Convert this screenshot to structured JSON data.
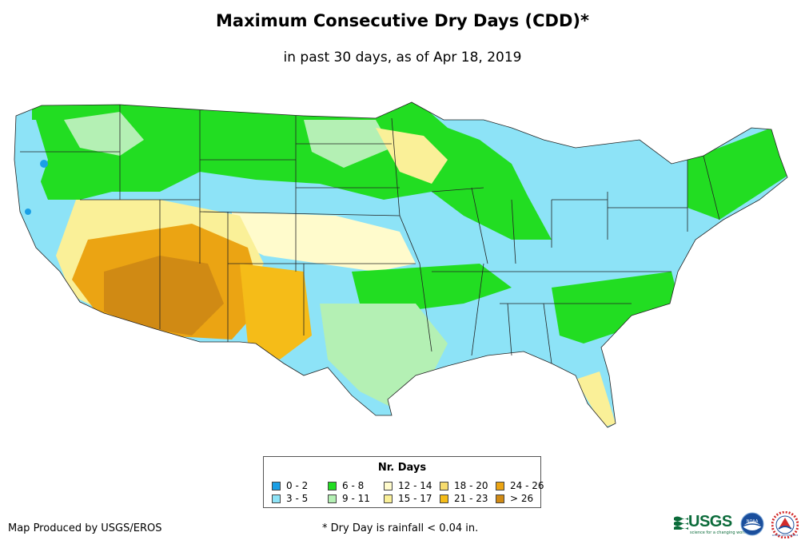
{
  "header": {
    "title": "Maximum Consecutive Dry Days (CDD)*",
    "subtitle": "in past 30 days, as of Apr 18, 2019"
  },
  "legend": {
    "title": "Nr. Days",
    "items": [
      {
        "label": "0 - 2",
        "color": "#1a9fe6"
      },
      {
        "label": "3 - 5",
        "color": "#8de3f7"
      },
      {
        "label": "6 - 8",
        "color": "#22dd22"
      },
      {
        "label": "9 - 11",
        "color": "#b4f0b4"
      },
      {
        "label": "12 - 14",
        "color": "#fffbcc"
      },
      {
        "label": "15 - 17",
        "color": "#faf098"
      },
      {
        "label": "18 - 20",
        "color": "#f7dc6e"
      },
      {
        "label": "21 - 23",
        "color": "#f5bc18"
      },
      {
        "label": "24 - 26",
        "color": "#eba413"
      },
      {
        "label": "> 26",
        "color": "#d08a14"
      }
    ]
  },
  "footer": {
    "credit": "Map Produced by USGS/EROS",
    "note": "* Dry Day is rainfall < 0.04 in."
  },
  "logos": {
    "usgs": "USGS",
    "usgs_tagline": "science for a changing world",
    "noaa": "NOAA",
    "nws": "NATIONAL WEATHER SERVICE"
  }
}
